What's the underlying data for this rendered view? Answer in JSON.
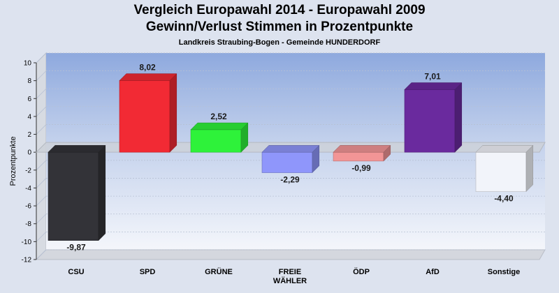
{
  "title": "Vergleich Europawahl 2014 - Europawahl 2009",
  "subtitle": "Gewinn/Verlust Stimmen in Prozentpunkte",
  "caption": "Landkreis Straubing-Bogen - Gemeinde HUNDERDORF",
  "chart_data": {
    "type": "bar",
    "title": "Vergleich Europawahl 2014 - Europawahl 2009",
    "subtitle": "Gewinn/Verlust Stimmen in Prozentpunkte",
    "caption": "Landkreis Straubing-Bogen - Gemeinde HUNDERDORF",
    "xlabel": "",
    "ylabel": "Prozentpunkte",
    "ylim": [
      -12,
      10
    ],
    "yticks": [
      10,
      8,
      6,
      4,
      2,
      0,
      -2,
      -4,
      -6,
      -8,
      -10,
      -12
    ],
    "categories": [
      [
        "CSU"
      ],
      [
        "SPD"
      ],
      [
        "GRÜNE"
      ],
      [
        "FREIE",
        "WÄHLER"
      ],
      [
        "ÖDP"
      ],
      [
        "AfD"
      ],
      [
        "Sonstige"
      ]
    ],
    "values": [
      -9.87,
      8.02,
      2.52,
      -2.29,
      -0.99,
      7.01,
      -4.4
    ],
    "value_labels": [
      "-9,87",
      "8,02",
      "2,52",
      "-2,29",
      "-0,99",
      "7,01",
      "-4,40"
    ],
    "colors": [
      "#333338",
      "#f22a34",
      "#2ef23a",
      "#8f96fb",
      "#f29596",
      "#6a2a9e",
      "#f2f4fa"
    ],
    "grid": true,
    "legend": "none"
  }
}
